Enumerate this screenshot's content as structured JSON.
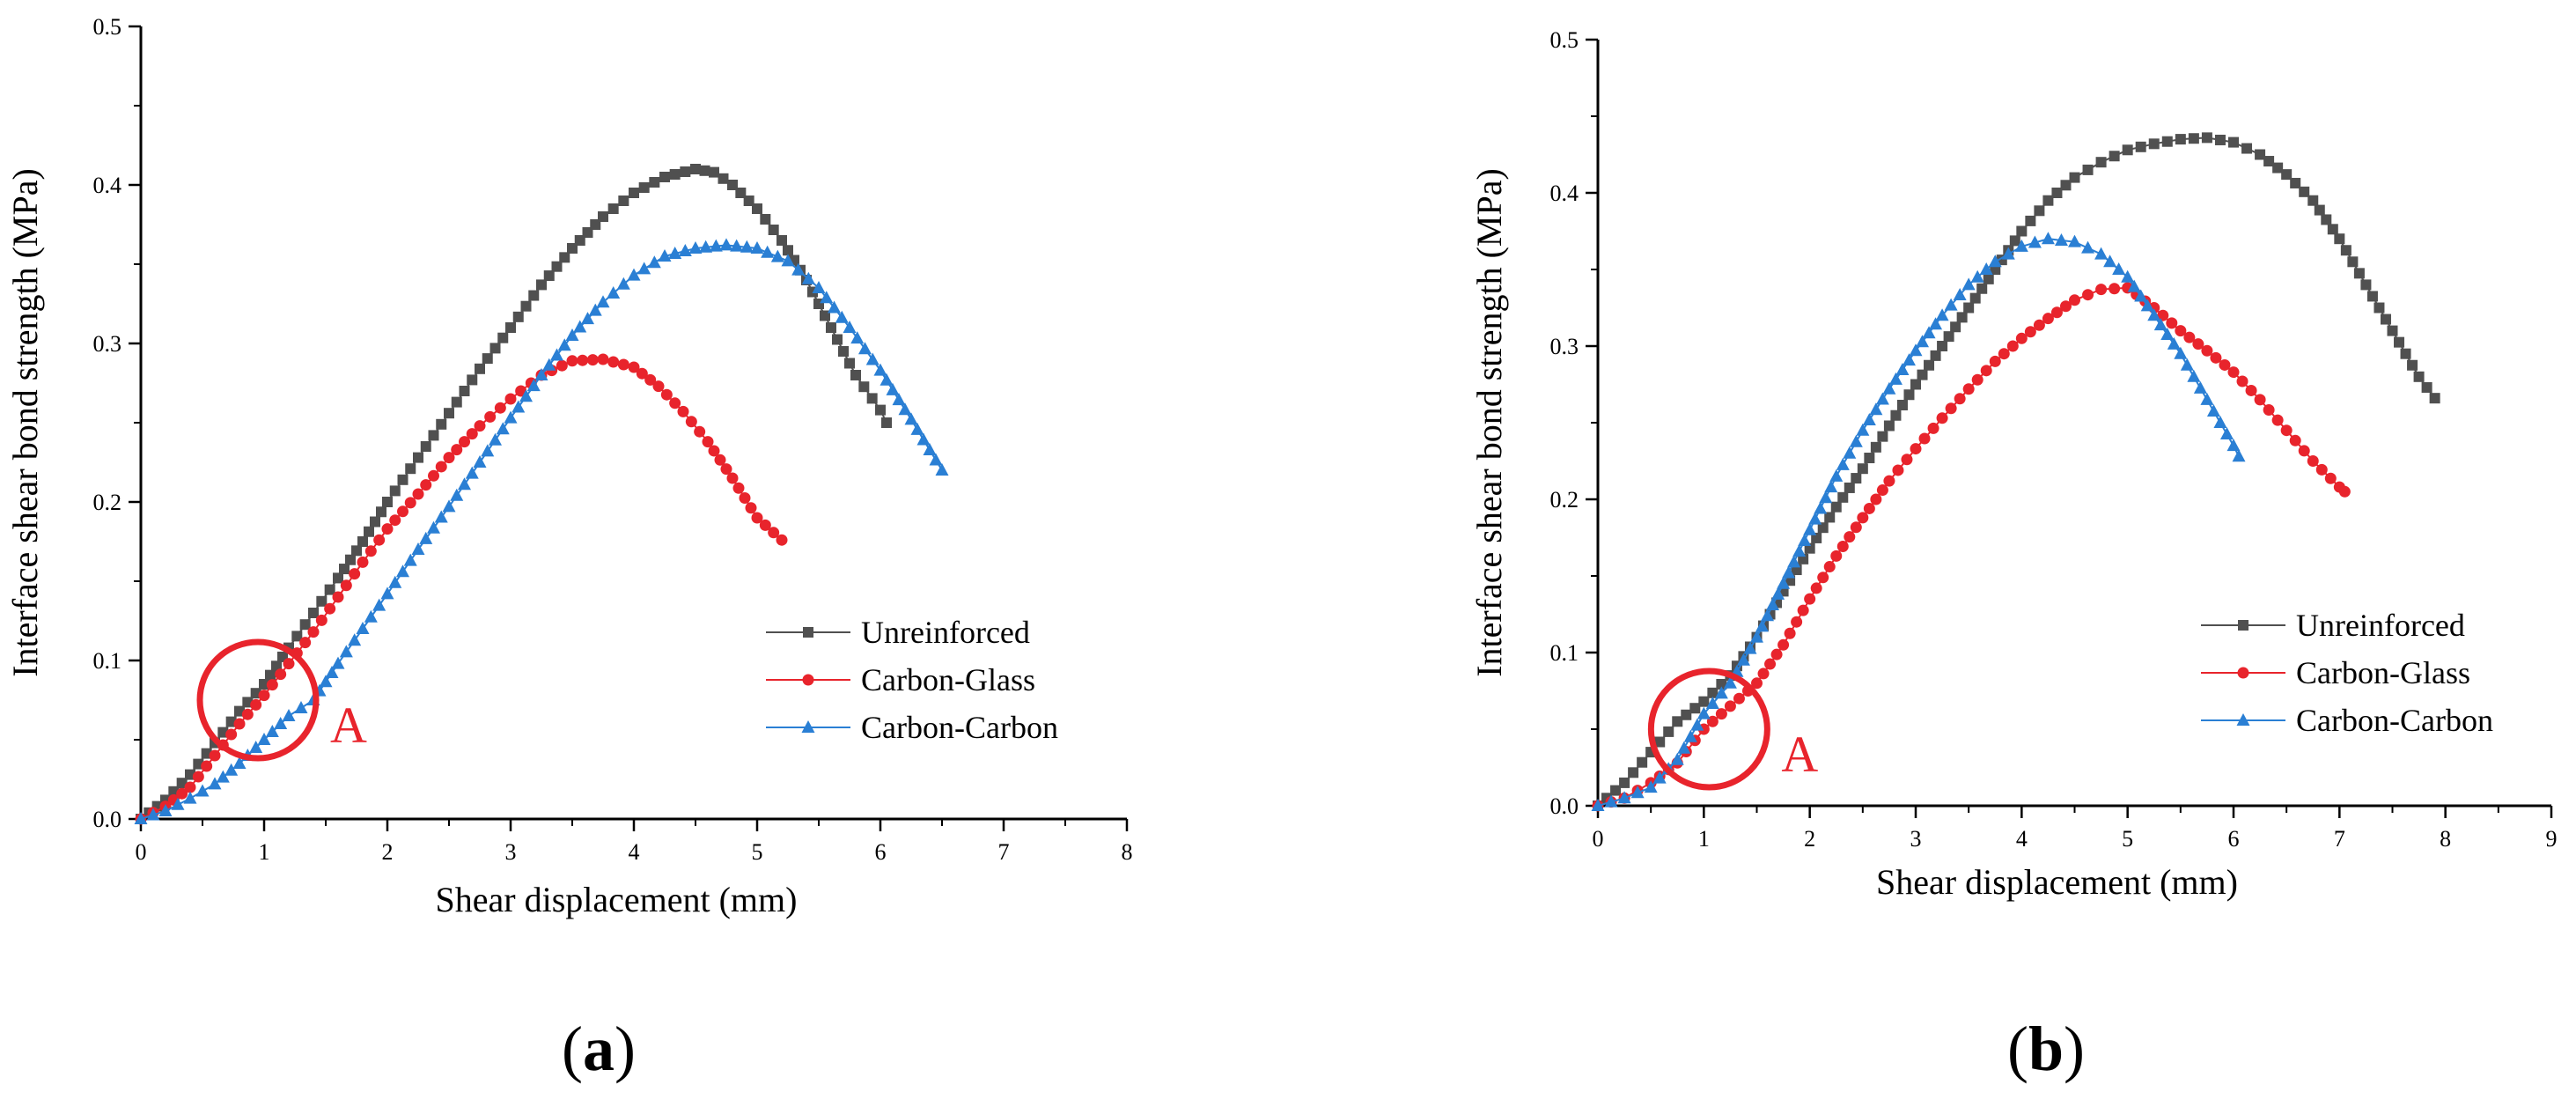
{
  "chart_data": [
    {
      "panel": "a",
      "type": "line",
      "caption_letter": "a",
      "xlabel": "Shear displacement (mm)",
      "ylabel": "Interface shear bond strength (MPa)",
      "xlim": [
        0,
        8
      ],
      "ylim": [
        0,
        0.5
      ],
      "xticks": [
        "0",
        "1",
        "2",
        "3",
        "4",
        "5",
        "6",
        "7",
        "8"
      ],
      "yticks": [
        "0.0",
        "0.1",
        "0.2",
        "0.3",
        "0.4",
        "0.5"
      ],
      "legend": [
        "Unreinforced",
        "Carbon-Glass",
        "Carbon-Carbon"
      ],
      "annotation": {
        "label": "A",
        "x": 0.95,
        "y": 0.075
      },
      "series": [
        {
          "name": "Unreinforced",
          "color": "#505050",
          "marker": "square",
          "x": [
            0,
            0.2,
            0.4,
            0.6,
            0.8,
            1.0,
            1.2,
            1.4,
            1.6,
            1.8,
            2.0,
            2.25,
            2.5,
            2.75,
            3.0,
            3.25,
            3.5,
            3.75,
            4.0,
            4.25,
            4.5,
            4.65,
            4.8,
            5.0,
            5.2,
            5.4,
            5.6,
            5.8,
            6.0,
            6.05
          ],
          "y": [
            0,
            0.012,
            0.028,
            0.048,
            0.068,
            0.085,
            0.108,
            0.13,
            0.152,
            0.175,
            0.2,
            0.228,
            0.256,
            0.284,
            0.31,
            0.337,
            0.36,
            0.38,
            0.395,
            0.405,
            0.41,
            0.408,
            0.4,
            0.385,
            0.365,
            0.34,
            0.31,
            0.28,
            0.258,
            0.25
          ]
        },
        {
          "name": "Carbon-Glass",
          "color": "#e8242c",
          "marker": "circle",
          "x": [
            0,
            0.2,
            0.4,
            0.6,
            0.8,
            1.0,
            1.2,
            1.4,
            1.6,
            1.8,
            2.0,
            2.25,
            2.5,
            2.75,
            3.0,
            3.25,
            3.5,
            3.75,
            4.0,
            4.2,
            4.4,
            4.6,
            4.8,
            5.0,
            5.2
          ],
          "y": [
            0,
            0.008,
            0.02,
            0.04,
            0.06,
            0.078,
            0.098,
            0.118,
            0.14,
            0.162,
            0.183,
            0.205,
            0.228,
            0.248,
            0.265,
            0.28,
            0.289,
            0.29,
            0.285,
            0.273,
            0.257,
            0.238,
            0.215,
            0.19,
            0.176
          ]
        },
        {
          "name": "Carbon-Carbon",
          "color": "#2a7fd4",
          "marker": "triangle",
          "x": [
            0,
            0.2,
            0.4,
            0.6,
            0.8,
            1.0,
            1.2,
            1.4,
            1.6,
            1.8,
            2.0,
            2.25,
            2.5,
            2.75,
            3.0,
            3.25,
            3.5,
            3.75,
            4.0,
            4.25,
            4.5,
            4.75,
            5.0,
            5.25,
            5.5,
            5.75,
            6.0,
            6.25,
            6.5
          ],
          "y": [
            0,
            0.005,
            0.013,
            0.022,
            0.035,
            0.05,
            0.065,
            0.075,
            0.098,
            0.12,
            0.142,
            0.17,
            0.197,
            0.225,
            0.253,
            0.28,
            0.305,
            0.326,
            0.343,
            0.355,
            0.36,
            0.362,
            0.36,
            0.352,
            0.335,
            0.31,
            0.283,
            0.252,
            0.22
          ]
        }
      ]
    },
    {
      "panel": "b",
      "type": "line",
      "caption_letter": "b",
      "xlabel": "Shear displacement (mm)",
      "ylabel": "Interface shear bond strength (MPa)",
      "xlim": [
        0,
        9
      ],
      "ylim": [
        0,
        0.5
      ],
      "xticks": [
        "0",
        "1",
        "2",
        "3",
        "4",
        "5",
        "6",
        "7",
        "8",
        "9"
      ],
      "yticks": [
        "0.0",
        "0.1",
        "0.2",
        "0.3",
        "0.4",
        "0.5"
      ],
      "legend": [
        "Unreinforced",
        "Carbon-Glass",
        "Carbon-Carbon"
      ],
      "annotation": {
        "label": "A",
        "x": 1.05,
        "y": 0.05
      },
      "series": [
        {
          "name": "Unreinforced",
          "color": "#505050",
          "marker": "square",
          "x": [
            0,
            0.25,
            0.5,
            0.75,
            1.0,
            1.25,
            1.5,
            1.75,
            2.0,
            2.25,
            2.5,
            2.75,
            3.0,
            3.25,
            3.5,
            3.75,
            4.0,
            4.25,
            4.5,
            4.75,
            5.0,
            5.25,
            5.5,
            5.75,
            6.0,
            6.25,
            6.5,
            6.75,
            7.0,
            7.25,
            7.5,
            7.75,
            7.9
          ],
          "y": [
            0,
            0.015,
            0.035,
            0.055,
            0.068,
            0.085,
            0.11,
            0.14,
            0.168,
            0.195,
            0.22,
            0.248,
            0.275,
            0.3,
            0.325,
            0.35,
            0.375,
            0.395,
            0.41,
            0.42,
            0.428,
            0.432,
            0.435,
            0.436,
            0.433,
            0.425,
            0.412,
            0.395,
            0.37,
            0.34,
            0.31,
            0.28,
            0.266
          ]
        },
        {
          "name": "Carbon-Glass",
          "color": "#e8242c",
          "marker": "circle",
          "x": [
            0,
            0.25,
            0.5,
            0.75,
            1.0,
            1.25,
            1.5,
            1.75,
            2.0,
            2.25,
            2.5,
            2.75,
            3.0,
            3.25,
            3.5,
            3.75,
            4.0,
            4.25,
            4.5,
            4.75,
            5.0,
            5.25,
            5.5,
            5.75,
            6.0,
            6.25,
            6.5,
            6.75,
            7.0,
            7.05
          ],
          "y": [
            0,
            0.005,
            0.015,
            0.028,
            0.05,
            0.065,
            0.08,
            0.105,
            0.135,
            0.163,
            0.188,
            0.212,
            0.233,
            0.253,
            0.272,
            0.29,
            0.305,
            0.318,
            0.33,
            0.337,
            0.338,
            0.325,
            0.31,
            0.297,
            0.283,
            0.265,
            0.245,
            0.225,
            0.208,
            0.205
          ]
        },
        {
          "name": "Carbon-Carbon",
          "color": "#2a7fd4",
          "marker": "triangle",
          "x": [
            0,
            0.25,
            0.5,
            0.75,
            1.0,
            1.25,
            1.5,
            1.75,
            2.0,
            2.25,
            2.5,
            2.75,
            3.0,
            3.25,
            3.5,
            3.75,
            4.0,
            4.25,
            4.5,
            4.75,
            5.0,
            5.25,
            5.5,
            5.75,
            6.0,
            6.05
          ],
          "y": [
            0,
            0.005,
            0.012,
            0.03,
            0.06,
            0.08,
            0.11,
            0.145,
            0.18,
            0.215,
            0.245,
            0.272,
            0.297,
            0.32,
            0.34,
            0.355,
            0.365,
            0.37,
            0.368,
            0.36,
            0.345,
            0.32,
            0.295,
            0.265,
            0.235,
            0.228
          ]
        }
      ]
    }
  ]
}
